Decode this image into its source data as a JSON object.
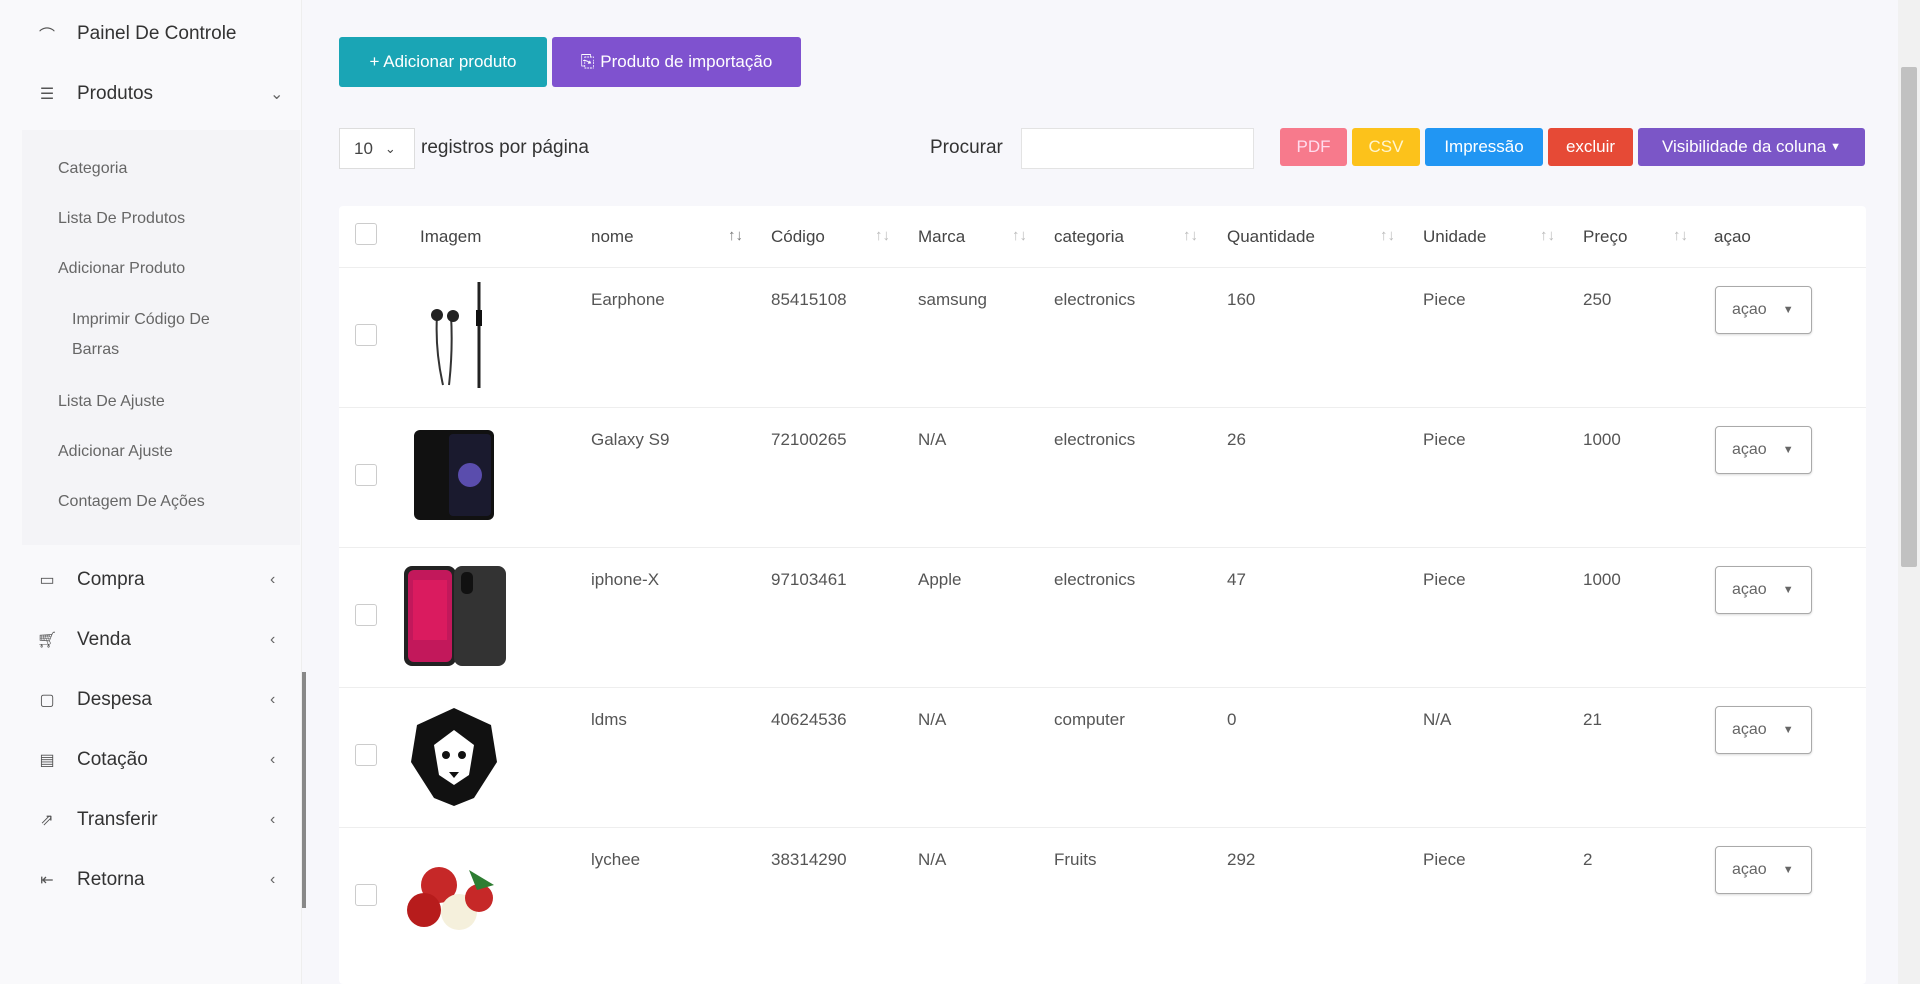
{
  "sidebar": {
    "dashboard": {
      "label": "Painel De Controle",
      "icon": "gauge-icon"
    },
    "products": {
      "label": "Produtos",
      "icon": "list-icon"
    },
    "submenu": [
      "Categoria",
      "Lista De Produtos",
      "Adicionar Produto",
      "Imprimir Código De",
      "Barras",
      "Lista De Ajuste",
      "Adicionar Ajuste",
      "Contagem De Ações"
    ],
    "items": [
      {
        "label": "Compra",
        "icon": "card-icon"
      },
      {
        "label": "Venda",
        "icon": "cart-icon"
      },
      {
        "label": "Despesa",
        "icon": "wallet-icon"
      },
      {
        "label": "Cotação",
        "icon": "document-icon"
      },
      {
        "label": "Transferir",
        "icon": "share-icon"
      },
      {
        "label": "Retorna",
        "icon": "return-icon"
      }
    ]
  },
  "toolbar": {
    "add_product": "+ Adicionar produto",
    "import_product": "Produto de importação"
  },
  "controls": {
    "page_size": "10",
    "page_size_label": "registros por página",
    "search_label": "Procurar",
    "search_value": "",
    "export": {
      "pdf": "PDF",
      "csv": "CSV",
      "print": "Impressão",
      "delete": "excluir",
      "columns": "Visibilidade da coluna"
    }
  },
  "colors": {
    "teal": "#1aa5b5",
    "purple": "#7f52cf",
    "pdf": "#f77a8c",
    "csv": "#fcc21b",
    "print": "#2196f3",
    "delete": "#e64a36",
    "columns": "#7b56c7"
  },
  "table": {
    "headers": [
      "Imagem",
      "nome",
      "Código",
      "Marca",
      "categoria",
      "Quantidade",
      "Unidade",
      "Preço",
      "açao"
    ],
    "action_label": "açao",
    "rows": [
      {
        "image": "earphone",
        "nome": "Earphone",
        "codigo": "85415108",
        "marca": "samsung",
        "categoria": "electronics",
        "quantidade": "160",
        "unidade": "Piece",
        "preco": "250"
      },
      {
        "image": "galaxy-s9",
        "nome": "Galaxy S9",
        "codigo": "72100265",
        "marca": "N/A",
        "categoria": "electronics",
        "quantidade": "26",
        "unidade": "Piece",
        "preco": "1000"
      },
      {
        "image": "iphone-x",
        "nome": "iphone-X",
        "codigo": "97103461",
        "marca": "Apple",
        "categoria": "electronics",
        "quantidade": "47",
        "unidade": "Piece",
        "preco": "1000"
      },
      {
        "image": "lion-logo",
        "nome": "ldms",
        "codigo": "40624536",
        "marca": "N/A",
        "categoria": "computer",
        "quantidade": "0",
        "unidade": "N/A",
        "preco": "21"
      },
      {
        "image": "lychee",
        "nome": "lychee",
        "codigo": "38314290",
        "marca": "N/A",
        "categoria": "Fruits",
        "quantidade": "292",
        "unidade": "Piece",
        "preco": "2"
      }
    ]
  }
}
